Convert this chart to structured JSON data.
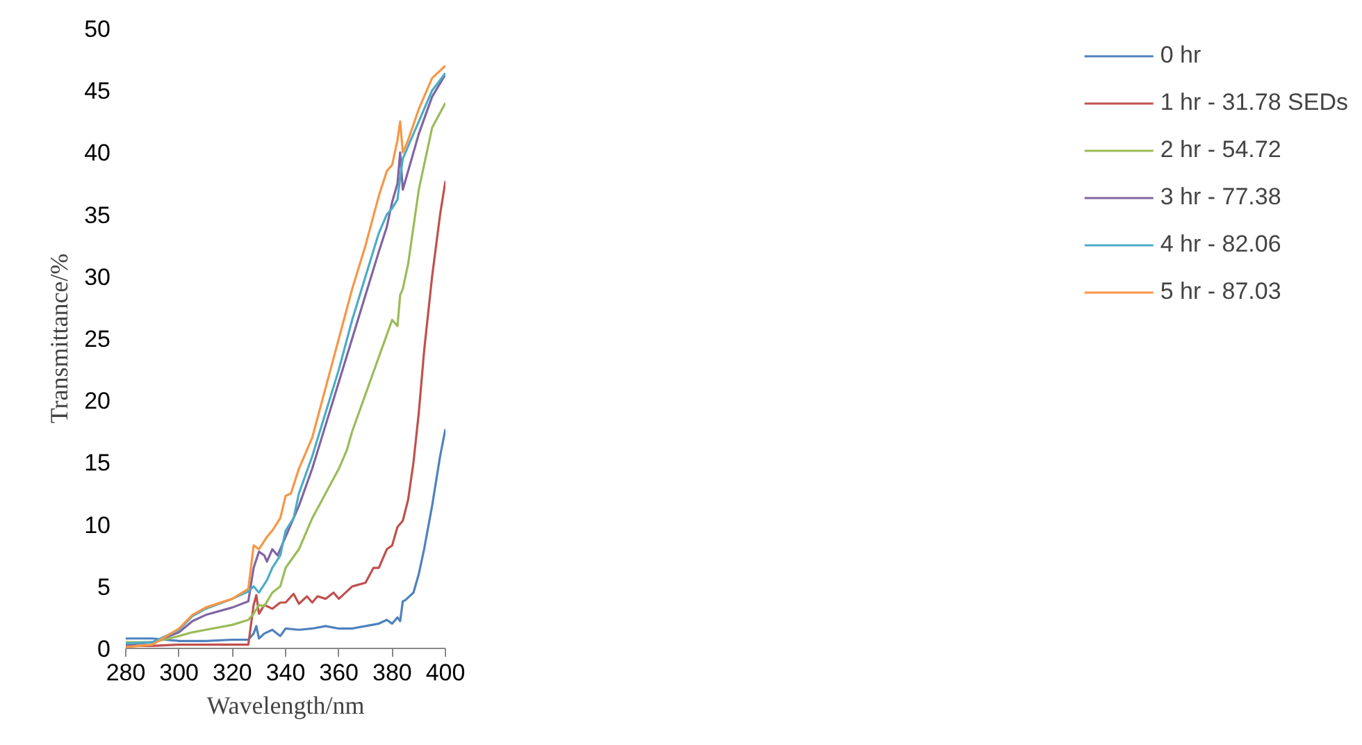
{
  "chart_data": {
    "type": "line",
    "xlabel": "Wavelength/nm",
    "ylabel": "Transmittance/%",
    "xlim": [
      280,
      400
    ],
    "xticks": [
      280,
      300,
      320,
      340,
      360,
      380,
      400
    ],
    "ylim": [
      0,
      50
    ],
    "yticks": [
      0,
      5,
      10,
      15,
      20,
      25,
      30,
      35,
      40,
      45,
      50
    ],
    "grid": false,
    "legend": "right",
    "marker": "none",
    "line_style": "solid",
    "series": [
      {
        "name": "0 hr",
        "color": "#4f81bd",
        "x": [
          280,
          290,
          300,
          310,
          320,
          326,
          328,
          329,
          330,
          332,
          335,
          338,
          340,
          345,
          350,
          355,
          360,
          365,
          370,
          375,
          378,
          380,
          382,
          383,
          384,
          385,
          388,
          390,
          392,
          395,
          398,
          400
        ],
        "values": [
          0.8,
          0.8,
          0.6,
          0.6,
          0.7,
          0.7,
          1.2,
          1.8,
          0.8,
          1.2,
          1.5,
          1.0,
          1.6,
          1.5,
          1.6,
          1.8,
          1.6,
          1.6,
          1.8,
          2.0,
          2.3,
          2.0,
          2.5,
          2.2,
          3.8,
          3.9,
          4.5,
          6,
          8,
          11.5,
          15.5,
          17.7
        ]
      },
      {
        "name": "1 hr - 31.78 SEDs",
        "color": "#c0504d",
        "x": [
          280,
          290,
          300,
          310,
          320,
          326,
          328,
          329,
          330,
          332,
          335,
          338,
          340,
          343,
          345,
          348,
          350,
          352,
          355,
          358,
          360,
          365,
          370,
          373,
          375,
          378,
          380,
          382,
          384,
          386,
          388,
          390,
          392,
          395,
          398,
          400
        ],
        "values": [
          0.2,
          0.2,
          0.3,
          0.3,
          0.3,
          0.3,
          3.5,
          4.3,
          2.8,
          3.5,
          3.2,
          3.7,
          3.7,
          4.4,
          3.6,
          4.2,
          3.7,
          4.2,
          4.0,
          4.5,
          4.0,
          5.0,
          5.3,
          6.5,
          6.5,
          8.0,
          8.3,
          9.8,
          10.3,
          12,
          15,
          19,
          24,
          30,
          35,
          37.7
        ]
      },
      {
        "name": "2 hr - 54.72",
        "color": "#9bbb59",
        "x": [
          280,
          290,
          300,
          305,
          310,
          320,
          326,
          328,
          330,
          332,
          335,
          338,
          340,
          345,
          350,
          355,
          360,
          363,
          365,
          370,
          375,
          380,
          382,
          383,
          384,
          386,
          390,
          395,
          400
        ],
        "values": [
          0.5,
          0.5,
          1.0,
          1.3,
          1.5,
          1.9,
          2.3,
          2.8,
          3.5,
          3.4,
          4.5,
          5,
          6.5,
          8,
          10.5,
          12.5,
          14.5,
          16,
          17.5,
          20.5,
          23.5,
          26.5,
          26,
          28.5,
          29,
          31,
          37,
          42,
          44
        ]
      },
      {
        "name": "3 hr - 77.38",
        "color": "#8064a2",
        "x": [
          280,
          290,
          300,
          305,
          310,
          320,
          326,
          328,
          330,
          332,
          333,
          335,
          337,
          340,
          343,
          345,
          350,
          355,
          360,
          365,
          370,
          375,
          378,
          380,
          382,
          383,
          384,
          386,
          390,
          395,
          400
        ],
        "values": [
          0.3,
          0.5,
          1.3,
          2.2,
          2.7,
          3.3,
          3.8,
          6.5,
          7.8,
          7.5,
          7,
          8.0,
          7.5,
          9.0,
          10.5,
          11.5,
          14.5,
          18,
          21.5,
          25,
          28.5,
          32,
          34,
          36,
          37.5,
          40,
          37,
          38.5,
          41.5,
          44.5,
          46.3
        ]
      },
      {
        "name": "4 hr - 82.06",
        "color": "#4bacc6",
        "x": [
          280,
          290,
          300,
          305,
          310,
          320,
          326,
          328,
          330,
          333,
          335,
          338,
          340,
          343,
          345,
          350,
          355,
          360,
          365,
          370,
          375,
          378,
          380,
          382,
          383,
          384,
          386,
          390,
          395,
          400
        ],
        "values": [
          0.4,
          0.5,
          1.5,
          2.6,
          3.2,
          4,
          4.6,
          5.0,
          4.5,
          5.5,
          6.5,
          7.5,
          9.5,
          10.5,
          12.5,
          15.5,
          19,
          22.5,
          26.5,
          30,
          33.5,
          35,
          35.5,
          36.2,
          38,
          39.5,
          40.5,
          42.5,
          45,
          46.4
        ]
      },
      {
        "name": "5 hr - 87.03",
        "color": "#f79646",
        "x": [
          280,
          290,
          300,
          305,
          310,
          320,
          326,
          328,
          330,
          333,
          335,
          338,
          340,
          342,
          345,
          350,
          355,
          360,
          365,
          370,
          375,
          378,
          380,
          382,
          383,
          384,
          386,
          390,
          395,
          400
        ],
        "values": [
          0.1,
          0.3,
          1.6,
          2.7,
          3.3,
          4.0,
          4.8,
          8.3,
          8,
          9,
          9.5,
          10.5,
          12.3,
          12.5,
          14.5,
          17,
          21,
          25,
          29,
          32.5,
          36.5,
          38.5,
          39,
          41,
          42.5,
          40,
          41,
          43.5,
          46,
          47
        ]
      }
    ]
  }
}
